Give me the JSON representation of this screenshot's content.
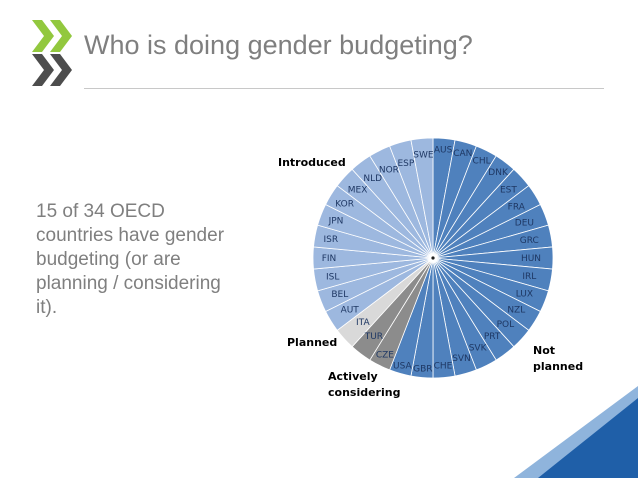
{
  "header": {
    "title": "Who is doing gender budgeting?"
  },
  "body_text": "15 of 34 OECD countries have gender budgeting (or are planning / considering it).",
  "colors": {
    "introduced": "#9db8df",
    "planned": "#d9d9d9",
    "actively_considering": "#8c8c8c",
    "not_planned": "#4f81bd",
    "slice_border": "#ffffff",
    "logo_green": "#92c83e",
    "corner_blue": "#1f5fa8",
    "corner_light": "#8fb4dc"
  },
  "chart_data": {
    "type": "pie",
    "title": "",
    "countries": [
      {
        "label": "AUS",
        "group": "not_planned"
      },
      {
        "label": "CAN",
        "group": "not_planned"
      },
      {
        "label": "CHL",
        "group": "not_planned"
      },
      {
        "label": "DNK",
        "group": "not_planned"
      },
      {
        "label": "EST",
        "group": "not_planned"
      },
      {
        "label": "FRA",
        "group": "not_planned"
      },
      {
        "label": "DEU",
        "group": "not_planned"
      },
      {
        "label": "GRC",
        "group": "not_planned"
      },
      {
        "label": "HUN",
        "group": "not_planned"
      },
      {
        "label": "IRL",
        "group": "not_planned"
      },
      {
        "label": "LUX",
        "group": "not_planned"
      },
      {
        "label": "NZL",
        "group": "not_planned"
      },
      {
        "label": "POL",
        "group": "not_planned"
      },
      {
        "label": "PRT",
        "group": "not_planned"
      },
      {
        "label": "SVK",
        "group": "not_planned"
      },
      {
        "label": "SVN",
        "group": "not_planned"
      },
      {
        "label": "CHE",
        "group": "not_planned"
      },
      {
        "label": "GBR",
        "group": "not_planned"
      },
      {
        "label": "USA",
        "group": "not_planned"
      },
      {
        "label": "CZE",
        "group": "actively_considering"
      },
      {
        "label": "TUR",
        "group": "actively_considering"
      },
      {
        "label": "ITA",
        "group": "planned"
      },
      {
        "label": "AUT",
        "group": "introduced"
      },
      {
        "label": "BEL",
        "group": "introduced"
      },
      {
        "label": "ISL",
        "group": "introduced"
      },
      {
        "label": "FIN",
        "group": "introduced"
      },
      {
        "label": "ISR",
        "group": "introduced"
      },
      {
        "label": "JPN",
        "group": "introduced"
      },
      {
        "label": "KOR",
        "group": "introduced"
      },
      {
        "label": "MEX",
        "group": "introduced"
      },
      {
        "label": "NLD",
        "group": "introduced"
      },
      {
        "label": "NOR",
        "group": "introduced"
      },
      {
        "label": "ESP",
        "group": "introduced"
      },
      {
        "label": "SWE",
        "group": "introduced"
      }
    ],
    "values": [
      1,
      1,
      1,
      1,
      1,
      1,
      1,
      1,
      1,
      1,
      1,
      1,
      1,
      1,
      1,
      1,
      1,
      1,
      1,
      1,
      1,
      1,
      1,
      1,
      1,
      1,
      1,
      1,
      1,
      1,
      1,
      1,
      1,
      1
    ],
    "groups": {
      "introduced": "Introduced",
      "planned": "Planned",
      "actively_considering": "Actively considering",
      "not_planned": "Not planned"
    },
    "group_label_lines": {
      "introduced": [
        "Introduced"
      ],
      "planned": [
        "Planned"
      ],
      "actively_considering": [
        "Actively",
        "considering"
      ],
      "not_planned": [
        "Not",
        "planned"
      ]
    }
  }
}
